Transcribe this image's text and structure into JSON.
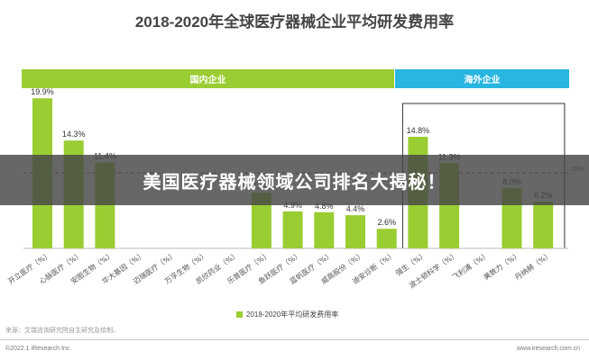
{
  "title": "2018-2020年全球医疗器械企业平均研发费用率",
  "banner": "美国医疗器械领域公司排名大揭秘！",
  "source": "来源：艾瑞咨询研究院自主研究及绘制。",
  "copyright": "©2022.1 iResearch Inc.",
  "site": "www.iresearch.com.cn",
  "colors": {
    "bar": "#9acd32",
    "domestic_header": "#9acd32",
    "overseas_header": "#29b6e0",
    "overseas_box": "#333333",
    "ref_line": "#7a4a6a"
  },
  "chart_data": {
    "type": "bar",
    "title": "2018-2020年全球医疗器械企业平均研发费用率",
    "groups": [
      {
        "name": "国内企业",
        "count": 12
      },
      {
        "name": "海外企业",
        "count": 5
      }
    ],
    "categories": [
      "开立医疗（%）",
      "心脉医疗（%）",
      "安图生物（%）",
      "华大基因（%）",
      "迈瑞医疗（%）",
      "万孚生物（%）",
      "凯欣药业（%）",
      "乐普医疗（%）",
      "鱼跃医疗（%）",
      "蓝帆医疗（%）",
      "威高股份（%）",
      "迪安诊断（%）",
      "强生（%）",
      "波士顿科学（%）",
      "飞利浦（%）",
      "美敦力（%）",
      "丹纳赫（%）"
    ],
    "values": [
      19.9,
      14.3,
      11.4,
      null,
      null,
      null,
      null,
      7.4,
      4.9,
      4.8,
      4.4,
      2.6,
      14.8,
      11.3,
      null,
      8.0,
      6.2
    ],
    "value_labels": [
      "19.9%",
      "14.3%",
      "11.4%",
      "",
      "",
      "",
      "",
      "7.4%",
      "4.9%",
      "4.8%",
      "4.4%",
      "2.6%",
      "14.8%",
      "11.3%",
      "",
      "8.0%",
      "6.2%"
    ],
    "reference_line": {
      "value": 10,
      "label": "10%"
    },
    "ylim": [
      0,
      21
    ],
    "legend": [
      {
        "name": "2018-2020年平均研发费用率"
      }
    ],
    "legend_position": "bottom"
  }
}
